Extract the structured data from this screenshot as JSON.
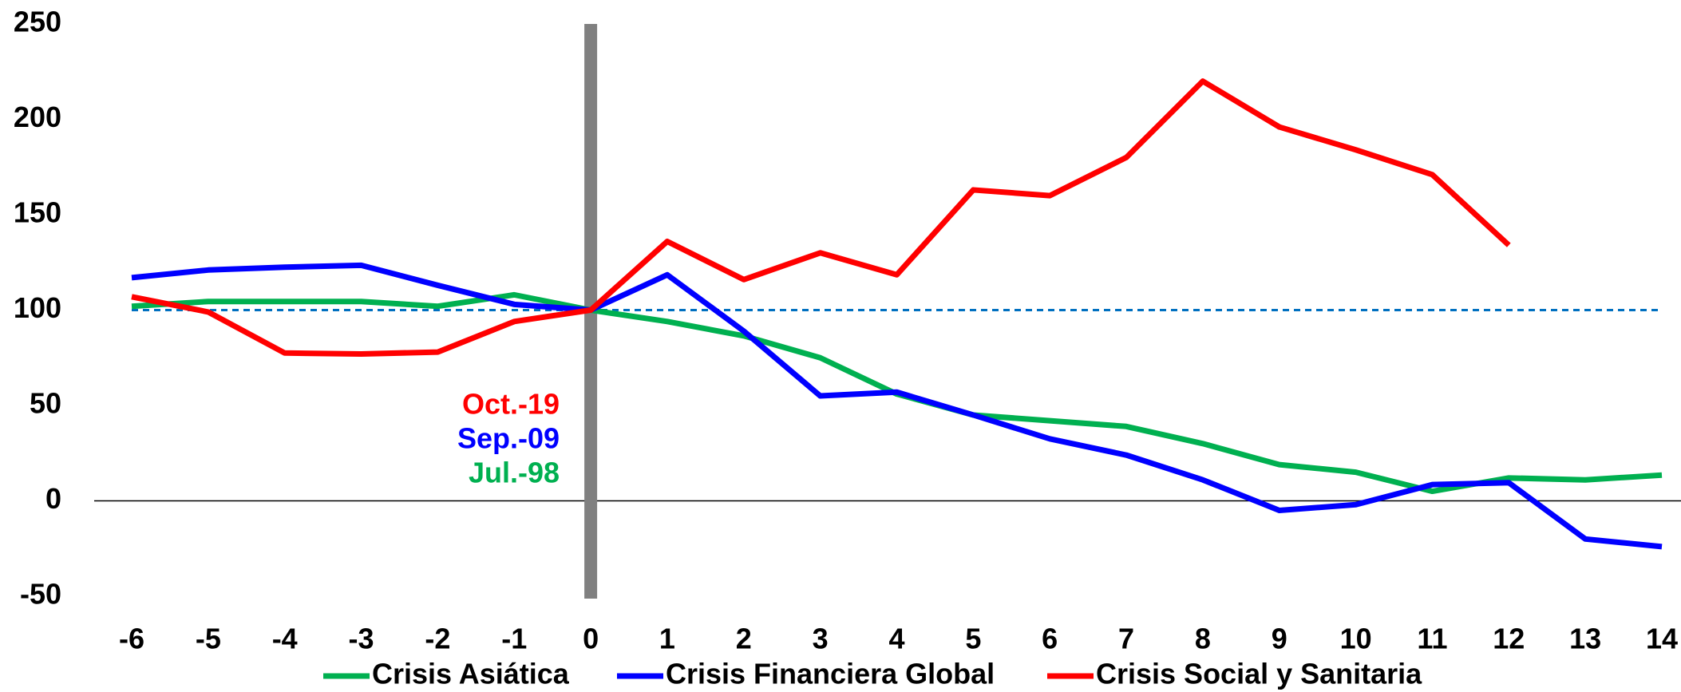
{
  "chart_data": {
    "type": "line",
    "x": [
      -6,
      -5,
      -4,
      -3,
      -2,
      -1,
      0,
      1,
      2,
      3,
      4,
      5,
      6,
      7,
      8,
      9,
      10,
      11,
      12,
      13,
      14
    ],
    "xlim": [
      -6,
      14
    ],
    "xticks": [
      -6,
      -5,
      -4,
      -3,
      -2,
      -1,
      0,
      1,
      2,
      3,
      4,
      5,
      6,
      7,
      8,
      9,
      10,
      11,
      12,
      13,
      14
    ],
    "ylim": [
      -50,
      250
    ],
    "yticks": [
      -50,
      0,
      50,
      100,
      150,
      200,
      250
    ],
    "reference_line": 100,
    "event_x": 0,
    "annotations": [
      {
        "text": "Oct.-19",
        "color": "#ff0000"
      },
      {
        "text": "Sep.-09",
        "color": "#0000ff"
      },
      {
        "text": "Jul.-98",
        "color": "#00b050"
      }
    ],
    "series": [
      {
        "name": "Crisis Asiática",
        "color": "#00b050",
        "values": [
          102,
          104.5,
          104.5,
          104.5,
          102,
          108,
          100,
          94,
          86.5,
          75,
          56,
          45,
          42,
          39,
          30,
          19,
          15,
          5,
          12,
          11,
          13.5
        ]
      },
      {
        "name": "Crisis Financiera Global",
        "color": "#0000ff",
        "values": [
          117,
          121,
          122.5,
          123.5,
          113,
          103,
          100,
          118.5,
          89,
          55,
          57,
          45,
          32.5,
          24,
          11,
          -5,
          -2,
          8.5,
          9.5,
          -20,
          -24
        ]
      },
      {
        "name": "Crisis Social y Sanitaria",
        "color": "#ff0000",
        "values": [
          107,
          99,
          77.5,
          77,
          78,
          94,
          100,
          136,
          116,
          130,
          118.5,
          163,
          160,
          180,
          220,
          196,
          184,
          171,
          134,
          null,
          null
        ]
      }
    ]
  }
}
